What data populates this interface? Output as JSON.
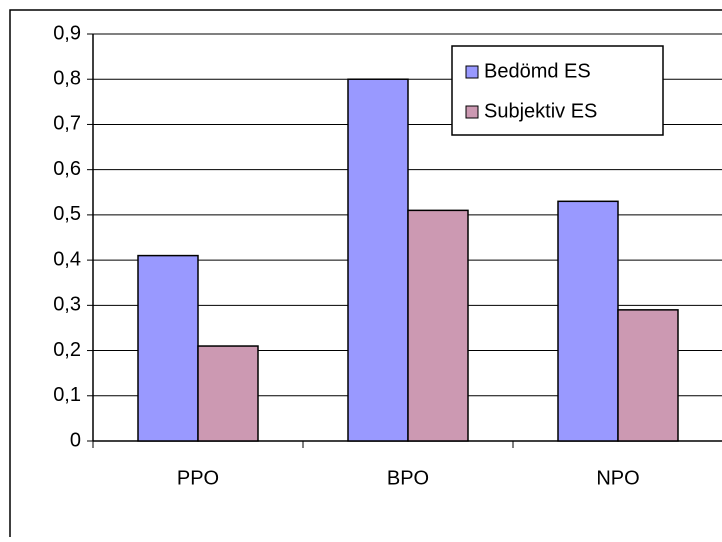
{
  "chart_data": {
    "type": "bar",
    "categories": [
      "PPO",
      "BPO",
      "NPO"
    ],
    "series": [
      {
        "name": "Bedömd ES",
        "color": "#9999ff",
        "values": [
          0.41,
          0.8,
          0.53
        ]
      },
      {
        "name": "Subjektiv ES",
        "color": "#cc99b2",
        "values": [
          0.21,
          0.51,
          0.29
        ]
      }
    ],
    "ylim": [
      0,
      0.9
    ],
    "yticks": [
      0,
      {
        "value": 0.1,
        "label": "0,1"
      },
      {
        "value": 0.2,
        "label": "0,2"
      },
      {
        "value": 0.3,
        "label": "0,3"
      },
      {
        "value": 0.4,
        "label": "0,4"
      },
      {
        "value": 0.5,
        "label": "0,5"
      },
      {
        "value": 0.6,
        "label": "0,6"
      },
      {
        "value": 0.7,
        "label": "0,7"
      },
      {
        "value": 0.8,
        "label": "0,8"
      },
      {
        "value": 0.9,
        "label": "0,9"
      }
    ],
    "grid": true,
    "legend": "upper right"
  }
}
